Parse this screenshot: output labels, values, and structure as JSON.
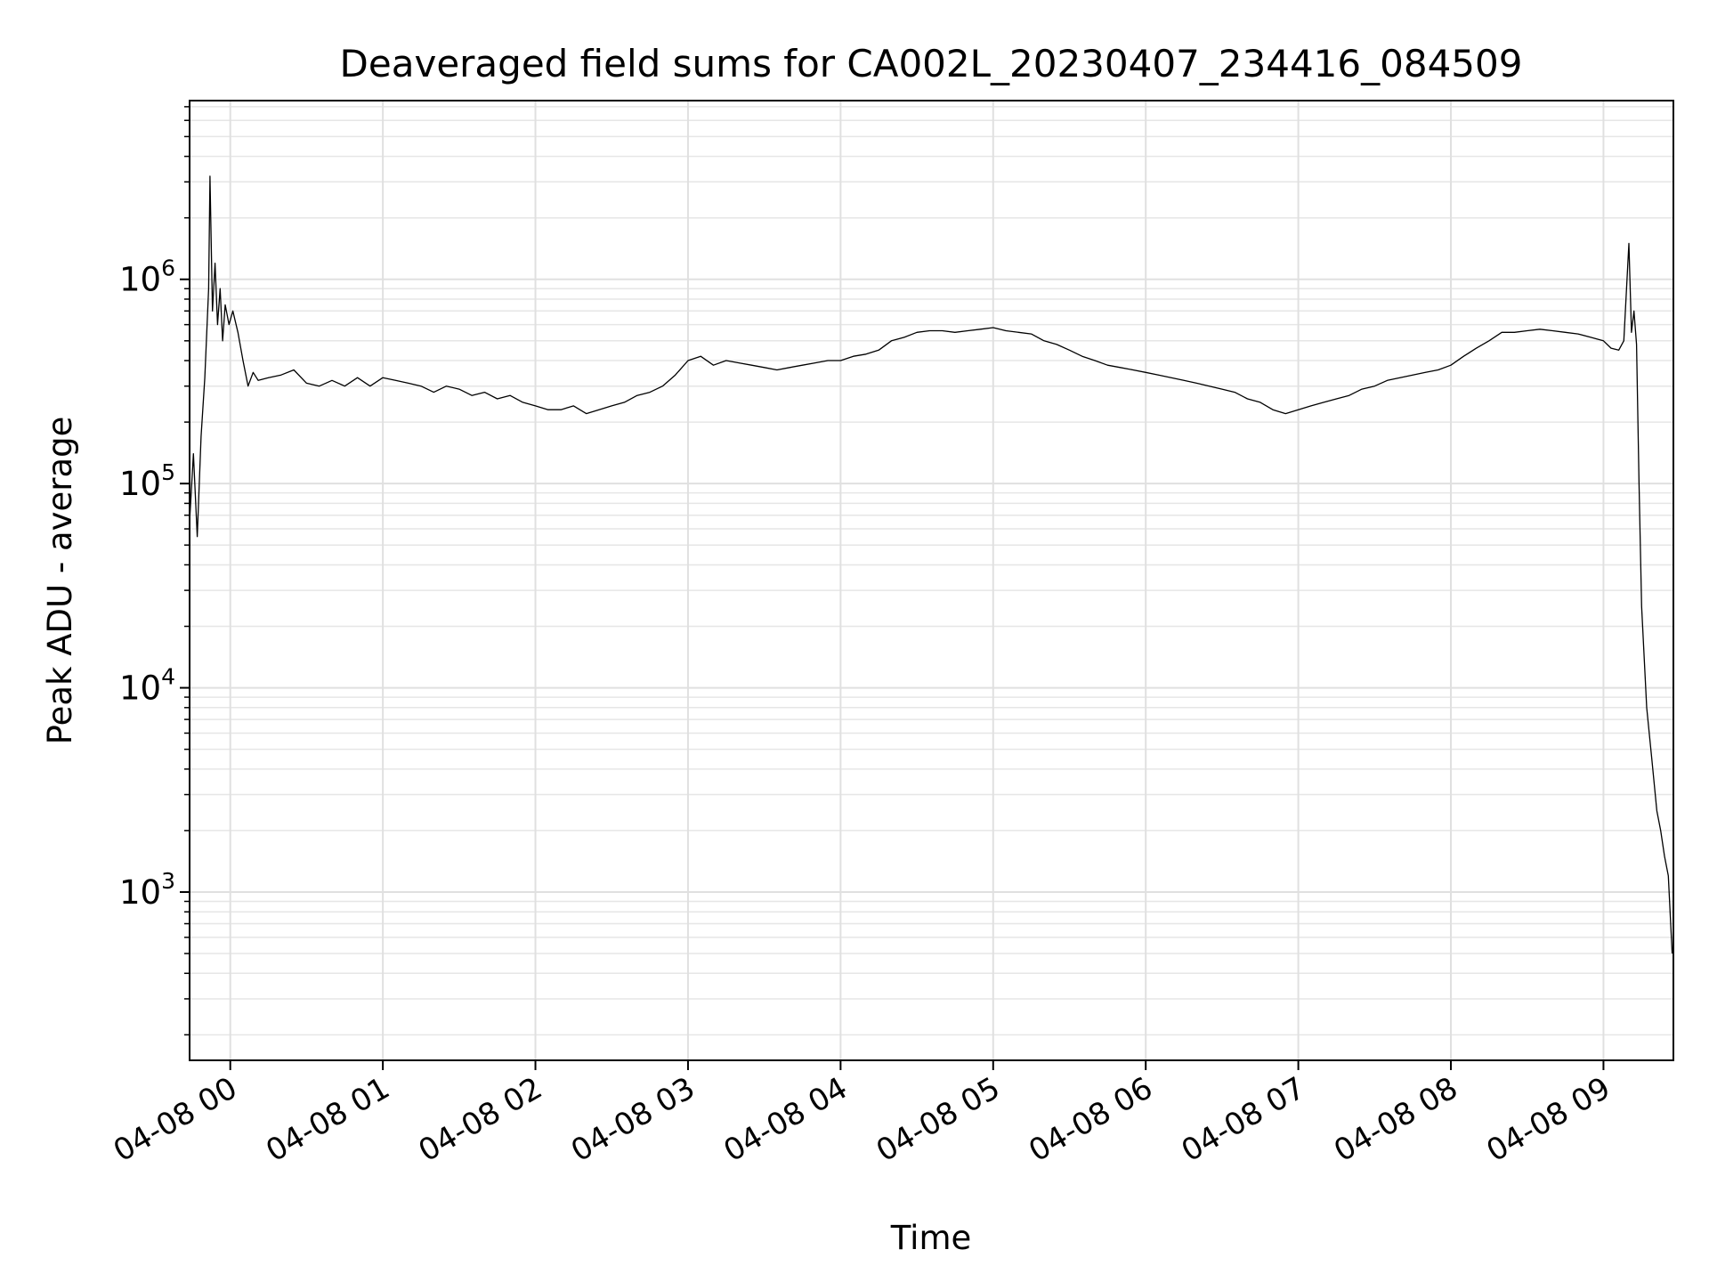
{
  "chart_data": {
    "type": "line",
    "title": "Deaveraged field sums for CA002L_20230407_234416_084509",
    "xlabel": "Time",
    "ylabel": "Peak ADU - average",
    "y_scale": "log",
    "y_ticks": [
      {
        "value": 1000,
        "base": "10",
        "exp": "3"
      },
      {
        "value": 10000,
        "base": "10",
        "exp": "4"
      },
      {
        "value": 100000,
        "base": "10",
        "exp": "5"
      },
      {
        "value": 1000000,
        "base": "10",
        "exp": "6"
      }
    ],
    "ylim": [
      150,
      7500000
    ],
    "xlim": [
      "2023-04-07 23:44:00",
      "2023-04-08 09:27:30"
    ],
    "x_ticks": [
      {
        "value": "2023-04-08 00:00",
        "label": "04-08 00"
      },
      {
        "value": "2023-04-08 01:00",
        "label": "04-08 01"
      },
      {
        "value": "2023-04-08 02:00",
        "label": "04-08 02"
      },
      {
        "value": "2023-04-08 03:00",
        "label": "04-08 03"
      },
      {
        "value": "2023-04-08 04:00",
        "label": "04-08 04"
      },
      {
        "value": "2023-04-08 05:00",
        "label": "04-08 05"
      },
      {
        "value": "2023-04-08 06:00",
        "label": "04-08 06"
      },
      {
        "value": "2023-04-08 07:00",
        "label": "04-08 07"
      },
      {
        "value": "2023-04-08 08:00",
        "label": "04-08 08"
      },
      {
        "value": "2023-04-08 09:00",
        "label": "04-08 09"
      }
    ],
    "grid": true,
    "legend": "none",
    "series": [
      {
        "color": "#000000",
        "x": [
          "2023-04-07 23:44:00",
          "2023-04-07 23:45:30",
          "2023-04-07 23:47:00",
          "2023-04-07 23:48:30",
          "2023-04-07 23:50:00",
          "2023-04-07 23:51:30",
          "2023-04-07 23:52:00",
          "2023-04-07 23:53:00",
          "2023-04-07 23:54:00",
          "2023-04-07 23:55:00",
          "2023-04-07 23:56:00",
          "2023-04-07 23:57:00",
          "2023-04-07 23:58:00",
          "2023-04-07 23:59:30",
          "2023-04-08 00:01:00",
          "2023-04-08 00:03:00",
          "2023-04-08 00:05:00",
          "2023-04-08 00:07:00",
          "2023-04-08 00:09:00",
          "2023-04-08 00:11:00",
          "2023-04-08 00:15:00",
          "2023-04-08 00:20:00",
          "2023-04-08 00:25:00",
          "2023-04-08 00:30:00",
          "2023-04-08 00:35:00",
          "2023-04-08 00:40:00",
          "2023-04-08 00:45:00",
          "2023-04-08 00:50:00",
          "2023-04-08 00:55:00",
          "2023-04-08 01:00:00",
          "2023-04-08 01:05:00",
          "2023-04-08 01:10:00",
          "2023-04-08 01:15:00",
          "2023-04-08 01:20:00",
          "2023-04-08 01:25:00",
          "2023-04-08 01:30:00",
          "2023-04-08 01:35:00",
          "2023-04-08 01:40:00",
          "2023-04-08 01:45:00",
          "2023-04-08 01:50:00",
          "2023-04-08 01:55:00",
          "2023-04-08 02:00:00",
          "2023-04-08 02:05:00",
          "2023-04-08 02:10:00",
          "2023-04-08 02:15:00",
          "2023-04-08 02:20:00",
          "2023-04-08 02:25:00",
          "2023-04-08 02:30:00",
          "2023-04-08 02:35:00",
          "2023-04-08 02:40:00",
          "2023-04-08 02:45:00",
          "2023-04-08 02:50:00",
          "2023-04-08 02:55:00",
          "2023-04-08 03:00:00",
          "2023-04-08 03:05:00",
          "2023-04-08 03:10:00",
          "2023-04-08 03:15:00",
          "2023-04-08 03:20:00",
          "2023-04-08 03:25:00",
          "2023-04-08 03:30:00",
          "2023-04-08 03:35:00",
          "2023-04-08 03:40:00",
          "2023-04-08 03:45:00",
          "2023-04-08 03:50:00",
          "2023-04-08 03:55:00",
          "2023-04-08 04:00:00",
          "2023-04-08 04:05:00",
          "2023-04-08 04:10:00",
          "2023-04-08 04:15:00",
          "2023-04-08 04:20:00",
          "2023-04-08 04:25:00",
          "2023-04-08 04:30:00",
          "2023-04-08 04:35:00",
          "2023-04-08 04:40:00",
          "2023-04-08 04:45:00",
          "2023-04-08 04:50:00",
          "2023-04-08 04:55:00",
          "2023-04-08 05:00:00",
          "2023-04-08 05:05:00",
          "2023-04-08 05:10:00",
          "2023-04-08 05:15:00",
          "2023-04-08 05:20:00",
          "2023-04-08 05:25:00",
          "2023-04-08 05:30:00",
          "2023-04-08 05:35:00",
          "2023-04-08 05:40:00",
          "2023-04-08 05:45:00",
          "2023-04-08 05:50:00",
          "2023-04-08 05:55:00",
          "2023-04-08 06:00:00",
          "2023-04-08 06:05:00",
          "2023-04-08 06:10:00",
          "2023-04-08 06:15:00",
          "2023-04-08 06:20:00",
          "2023-04-08 06:25:00",
          "2023-04-08 06:30:00",
          "2023-04-08 06:35:00",
          "2023-04-08 06:40:00",
          "2023-04-08 06:45:00",
          "2023-04-08 06:50:00",
          "2023-04-08 06:55:00",
          "2023-04-08 07:00:00",
          "2023-04-08 07:05:00",
          "2023-04-08 07:10:00",
          "2023-04-08 07:15:00",
          "2023-04-08 07:20:00",
          "2023-04-08 07:25:00",
          "2023-04-08 07:30:00",
          "2023-04-08 07:35:00",
          "2023-04-08 07:40:00",
          "2023-04-08 07:45:00",
          "2023-04-08 07:50:00",
          "2023-04-08 07:55:00",
          "2023-04-08 08:00:00",
          "2023-04-08 08:05:00",
          "2023-04-08 08:10:00",
          "2023-04-08 08:15:00",
          "2023-04-08 08:20:00",
          "2023-04-08 08:25:00",
          "2023-04-08 08:30:00",
          "2023-04-08 08:35:00",
          "2023-04-08 08:40:00",
          "2023-04-08 08:45:00",
          "2023-04-08 08:50:00",
          "2023-04-08 08:55:00",
          "2023-04-08 09:00:00",
          "2023-04-08 09:03:00",
          "2023-04-08 09:06:00",
          "2023-04-08 09:08:00",
          "2023-04-08 09:10:00",
          "2023-04-08 09:11:00",
          "2023-04-08 09:12:00",
          "2023-04-08 09:13:00",
          "2023-04-08 09:14:00",
          "2023-04-08 09:15:00",
          "2023-04-08 09:17:00",
          "2023-04-08 09:19:00",
          "2023-04-08 09:21:00",
          "2023-04-08 09:22:30",
          "2023-04-08 09:24:00",
          "2023-04-08 09:25:30",
          "2023-04-08 09:27:00"
        ],
        "y": [
          65000,
          140000,
          55000,
          170000,
          330000,
          900000,
          3200000,
          700000,
          1200000,
          600000,
          900000,
          500000,
          750000,
          600000,
          700000,
          550000,
          400000,
          300000,
          350000,
          320000,
          330000,
          340000,
          360000,
          310000,
          300000,
          320000,
          300000,
          330000,
          300000,
          330000,
          320000,
          310000,
          300000,
          280000,
          300000,
          290000,
          270000,
          280000,
          260000,
          270000,
          250000,
          240000,
          230000,
          230000,
          240000,
          220000,
          230000,
          240000,
          250000,
          270000,
          280000,
          300000,
          340000,
          400000,
          420000,
          380000,
          400000,
          390000,
          380000,
          370000,
          360000,
          370000,
          380000,
          390000,
          400000,
          400000,
          420000,
          430000,
          450000,
          500000,
          520000,
          550000,
          560000,
          560000,
          550000,
          560000,
          570000,
          580000,
          560000,
          550000,
          540000,
          500000,
          480000,
          450000,
          420000,
          400000,
          380000,
          370000,
          360000,
          350000,
          340000,
          330000,
          320000,
          310000,
          300000,
          290000,
          280000,
          260000,
          250000,
          230000,
          220000,
          230000,
          240000,
          250000,
          260000,
          270000,
          290000,
          300000,
          320000,
          330000,
          340000,
          350000,
          360000,
          380000,
          420000,
          460000,
          500000,
          550000,
          550000,
          560000,
          570000,
          560000,
          550000,
          540000,
          520000,
          500000,
          460000,
          450000,
          500000,
          1500000,
          550000,
          700000,
          480000,
          100000,
          25000,
          8000,
          4500,
          2500,
          2000,
          1500,
          1200,
          500
        ]
      }
    ]
  }
}
